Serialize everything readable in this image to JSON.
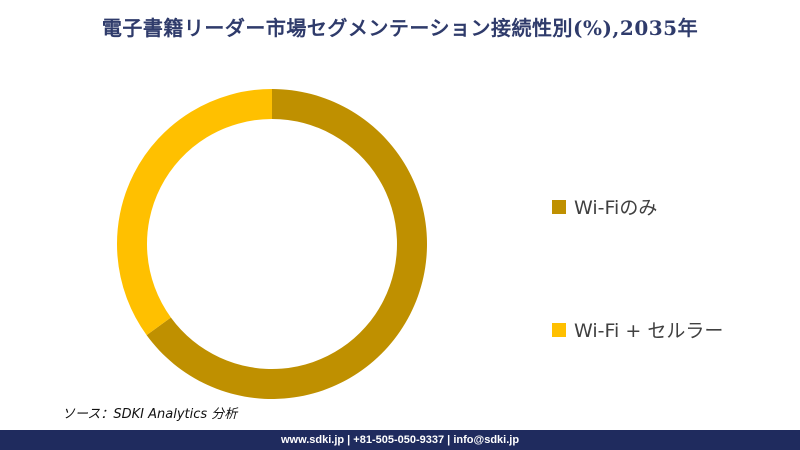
{
  "chart_data": {
    "type": "pie",
    "title": "電子書籍リーダー市場セグメンテーション接続性別(%),2035年",
    "categories": [
      "Wi-Fiのみ",
      "Wi-Fi + セルラー"
    ],
    "values": [
      65,
      35
    ],
    "colors": [
      "#bf9000",
      "#ffc000"
    ],
    "legend_position": "right"
  },
  "source": "ソース：SDKI Analytics 分析",
  "footer": "www.sdki.jp | +81-505-050-9337 | info@sdki.jp"
}
